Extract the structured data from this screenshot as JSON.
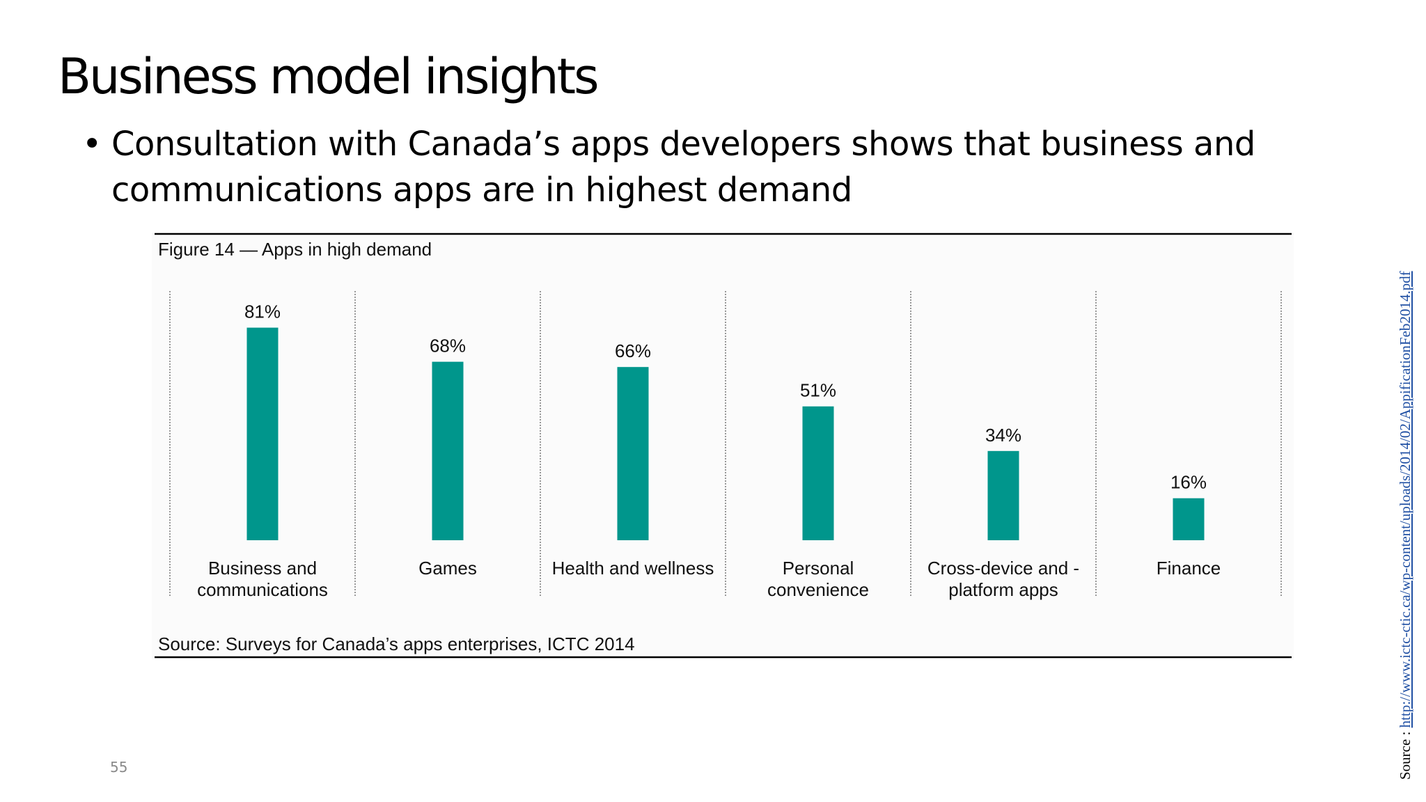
{
  "slide": {
    "title": "Business model insights",
    "bullet": "Consultation with Canada’s apps developers shows that business and communications apps are in highest demand",
    "page_number": "55",
    "source_prefix": "Source : ",
    "source_url": "http://www.ictc-ctic.ca/wp-content/uploads/2014/02/AppificationFeb2014.pdf"
  },
  "colors": {
    "bar": "#00968c",
    "link": "#1f4fa3"
  },
  "chart_data": {
    "type": "bar",
    "title": "Figure 14 — Apps in high demand",
    "source": "Source: Surveys for Canada’s apps enterprises, ICTC 2014",
    "categories": [
      [
        "Business and",
        "communications"
      ],
      [
        "Games"
      ],
      [
        "Health and wellness"
      ],
      [
        "Personal",
        "convenience"
      ],
      [
        "Cross-device and -",
        "platform apps"
      ],
      [
        "Finance"
      ]
    ],
    "values": [
      81,
      68,
      66,
      51,
      34,
      16
    ],
    "labels": [
      "81%",
      "68%",
      "66%",
      "51%",
      "34%",
      "16%"
    ],
    "ylim": [
      0,
      100
    ],
    "grid": false
  }
}
